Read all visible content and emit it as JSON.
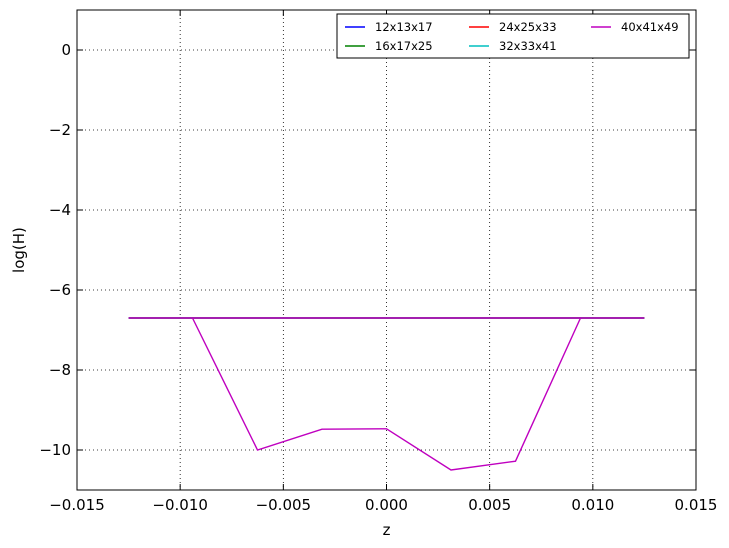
{
  "chart_data": {
    "type": "line",
    "title": "",
    "xlabel": "z",
    "ylabel": "log(H)",
    "xlim": [
      -0.015,
      0.015
    ],
    "ylim": [
      -11,
      1
    ],
    "xticks": [
      -0.015,
      -0.01,
      -0.005,
      0.0,
      0.005,
      0.01,
      0.015
    ],
    "xtick_labels": [
      "−0.015",
      "−0.010",
      "−0.005",
      "0.000",
      "0.005",
      "0.010",
      "0.015"
    ],
    "yticks": [
      0,
      -2,
      -4,
      -6,
      -8,
      -10
    ],
    "ytick_labels": [
      "0",
      "−2",
      "−4",
      "−6",
      "−8",
      "−10"
    ],
    "grid": true,
    "legend": {
      "placement": "top-right",
      "columns": 3
    },
    "series": [
      {
        "name": "12x13x17",
        "color": "#0000ff",
        "x": [
          -0.0125,
          0.0125
        ],
        "y": [
          -6.7,
          -6.7
        ]
      },
      {
        "name": "16x17x25",
        "color": "#008000",
        "x": [
          -0.0125,
          0.0125
        ],
        "y": [
          -6.7,
          -6.7
        ]
      },
      {
        "name": "24x25x33",
        "color": "#ff0000",
        "x": [
          -0.0125,
          0.0125
        ],
        "y": [
          -6.7,
          -6.7
        ]
      },
      {
        "name": "32x33x41",
        "color": "#00bfbf",
        "x": [
          -0.0125,
          0.0125
        ],
        "y": [
          -6.7,
          -6.7
        ]
      },
      {
        "name": "40x41x49",
        "color": "#bf00bf",
        "x": [
          -0.0125,
          0.0125
        ],
        "y": [
          -6.7,
          -6.7
        ]
      },
      {
        "name": "",
        "color": "#bf00bf",
        "x": [
          -0.0094,
          -0.00625,
          -0.003125,
          0.0,
          0.003125,
          0.00625,
          0.0094
        ],
        "y": [
          -6.7,
          -10.0,
          -9.48,
          -9.47,
          -10.5,
          -10.28,
          -6.7
        ]
      }
    ]
  }
}
